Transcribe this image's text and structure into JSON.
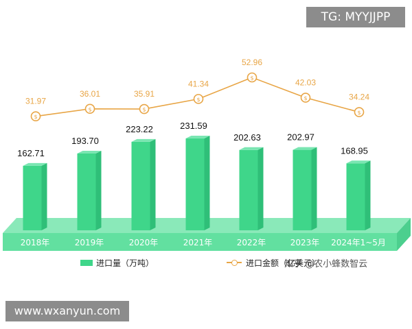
{
  "chart_data": {
    "type": "bar+line",
    "categories": [
      "2018年",
      "2019年",
      "2020年",
      "2021年",
      "2022年",
      "2023年",
      "2024年1~5月"
    ],
    "series": [
      {
        "name": "进口量（万吨）",
        "type": "bar",
        "values": [
          162.71,
          193.7,
          223.22,
          231.59,
          202.63,
          202.97,
          168.95
        ],
        "labels": [
          "162.71",
          "193.70",
          "223.22",
          "231.59",
          "202.63",
          "202.97",
          "168.95"
        ],
        "color": "#3fd68a"
      },
      {
        "name": "进口金额（亿美元）",
        "type": "line",
        "values": [
          31.97,
          36.01,
          35.91,
          41.34,
          52.96,
          42.03,
          34.24
        ],
        "labels": [
          "31.97",
          "36.01",
          "35.91",
          "41.34",
          "52.96",
          "42.03",
          "34.24"
        ],
        "color": "#e8a545"
      }
    ],
    "legend": [
      "进口量（万吨）",
      "进口金额（亿美元）"
    ],
    "legend_position": "bottom"
  },
  "overlays": {
    "top_tag": "TG: MYYJJPP",
    "bottom_tag": "www.wxanyun.com",
    "watermark": "知乎 @农小蜂数智云"
  },
  "colors": {
    "bar": "#3fd68a",
    "line": "#e8a545",
    "platform": "#62e0a0"
  }
}
